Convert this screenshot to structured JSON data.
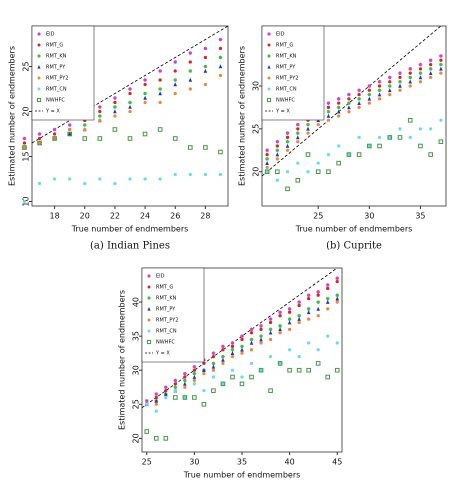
{
  "chart_data": [
    {
      "type": "scatter",
      "caption": "(a) Indian Pines",
      "x_label": "True number of endmembers",
      "y_label": "Estimated number of endmembers",
      "legend": "upper left",
      "reference_line": {
        "name": "Y = X",
        "color": "#000000"
      },
      "x": [
        16,
        17,
        18,
        19,
        20,
        21,
        22,
        23,
        24,
        25,
        26,
        27,
        28,
        29
      ],
      "xlim": [
        16.5,
        29.5
      ],
      "ylim": [
        9.5,
        29.5
      ],
      "xticks": [
        18,
        20,
        22,
        24,
        26,
        28
      ],
      "yticks": [
        10,
        15,
        20,
        25
      ],
      "series": [
        {
          "name": "EID",
          "color": "#cc44cc",
          "marker": "star",
          "values": [
            17,
            17.5,
            18,
            18.5,
            19.5,
            20.5,
            21.5,
            22.5,
            23.5,
            24.5,
            25.5,
            26.5,
            27,
            28
          ]
        },
        {
          "name": "RMT_G",
          "color": "#dd2222",
          "marker": "circle",
          "values": [
            16.5,
            17,
            17.5,
            18,
            19,
            20,
            21,
            22,
            23,
            23.5,
            24.5,
            25.5,
            26,
            27
          ]
        },
        {
          "name": "RMT_KN",
          "color": "#44bb44",
          "marker": "star",
          "values": [
            16,
            16.5,
            17,
            17.5,
            18.5,
            19.5,
            20.5,
            21,
            22,
            22.5,
            23.5,
            24.5,
            25,
            26
          ]
        },
        {
          "name": "RMT_PY",
          "color": "#2233cc",
          "marker": "triangle",
          "values": [
            16,
            16.5,
            17,
            17.5,
            18,
            19,
            20,
            20.5,
            21.5,
            22,
            23,
            23.5,
            24.5,
            25
          ]
        },
        {
          "name": "RMT_PY2",
          "color": "#ee8833",
          "marker": "circle",
          "values": [
            16,
            16.5,
            17,
            18,
            18,
            19,
            19.5,
            20,
            21,
            21,
            22,
            22.5,
            23,
            24
          ]
        },
        {
          "name": "RMT_CN",
          "color": "#66ddee",
          "marker": "circle",
          "values": [
            10,
            12,
            12.5,
            12.5,
            12,
            12.5,
            12,
            12.5,
            12.5,
            12.5,
            13,
            13,
            13,
            13
          ]
        },
        {
          "name": "NWHFC",
          "color": "#449944",
          "marker": "square",
          "values": [
            16,
            16.5,
            17,
            17.5,
            17,
            17,
            18,
            17,
            17.5,
            18,
            17,
            16,
            16,
            15.5
          ]
        }
      ]
    },
    {
      "type": "scatter",
      "caption": "(b) Cuprite",
      "x_label": "True number of endmembers",
      "y_label": "Estimated number of endmembers",
      "legend": "upper left",
      "reference_line": {
        "name": "Y = X",
        "color": "#000000"
      },
      "x": [
        20,
        21,
        22,
        23,
        24,
        25,
        26,
        27,
        28,
        29,
        30,
        31,
        32,
        33,
        34,
        35,
        36,
        37
      ],
      "xlim": [
        19.5,
        37.5
      ],
      "ylim": [
        16,
        37
      ],
      "xticks": [
        25,
        30,
        35
      ],
      "yticks": [
        20,
        25,
        30
      ],
      "series": [
        {
          "name": "EID",
          "color": "#cc44cc",
          "marker": "star",
          "values": [
            22.5,
            23.5,
            24.5,
            25.5,
            26.5,
            27.5,
            28,
            28.5,
            29,
            29.5,
            30,
            30.5,
            31,
            31.5,
            32,
            32.5,
            33,
            33.5
          ]
        },
        {
          "name": "RMT_G",
          "color": "#dd2222",
          "marker": "circle",
          "values": [
            22,
            23,
            24,
            25,
            26,
            27,
            27.5,
            28,
            28.5,
            29,
            29.5,
            30,
            30.5,
            31,
            31.5,
            32,
            32.5,
            33
          ]
        },
        {
          "name": "RMT_KN",
          "color": "#44bb44",
          "marker": "star",
          "values": [
            21.5,
            22.5,
            23.5,
            24.5,
            25.5,
            26.5,
            27,
            27.5,
            28,
            28.5,
            29,
            29.5,
            30,
            30.5,
            31,
            31.5,
            32,
            32.5
          ]
        },
        {
          "name": "RMT_PY",
          "color": "#2233cc",
          "marker": "triangle",
          "values": [
            21,
            22,
            23,
            24,
            25,
            26,
            26.5,
            27,
            27.5,
            28,
            28.5,
            29,
            29.5,
            30,
            30.5,
            31,
            31.5,
            32
          ]
        },
        {
          "name": "RMT_PY2",
          "color": "#ee8833",
          "marker": "circle",
          "values": [
            20.5,
            21.5,
            22.5,
            23.5,
            24.5,
            25.5,
            26,
            26.5,
            27,
            27.5,
            28,
            28.5,
            29,
            29.5,
            30,
            30.5,
            31,
            31.5
          ]
        },
        {
          "name": "RMT_CN",
          "color": "#66ddee",
          "marker": "circle",
          "values": [
            20,
            19,
            20,
            21,
            20,
            21,
            22,
            23,
            22,
            24,
            23,
            24,
            24,
            25,
            24,
            25,
            25,
            26
          ]
        },
        {
          "name": "NWHFC",
          "color": "#449944",
          "marker": "square",
          "values": [
            20,
            20,
            18,
            19,
            22,
            20,
            20,
            21,
            22,
            22,
            23,
            23,
            24,
            24,
            26,
            23,
            22,
            23.5
          ]
        }
      ]
    },
    {
      "type": "scatter",
      "x_label": "True number of endmembers",
      "y_label": "Estimated number of endmembers",
      "legend": "upper left",
      "reference_line": {
        "name": "Y = X",
        "color": "#000000"
      },
      "x": [
        25,
        26,
        27,
        28,
        29,
        30,
        31,
        32,
        33,
        34,
        35,
        36,
        37,
        38,
        39,
        40,
        41,
        42,
        43,
        44,
        45
      ],
      "xlim": [
        24.5,
        45.5
      ],
      "ylim": [
        18,
        45
      ],
      "xticks": [
        25,
        30,
        35,
        40,
        45
      ],
      "yticks": [
        20,
        25,
        30,
        35,
        40
      ],
      "series": [
        {
          "name": "EID",
          "color": "#cc44cc",
          "marker": "star",
          "values": [
            25.5,
            26.5,
            27.5,
            28.5,
            29.5,
            30.5,
            31.5,
            32.5,
            33.5,
            34,
            35,
            36,
            36.5,
            37.5,
            38.5,
            39,
            40,
            41,
            41.5,
            42.5,
            43.5
          ]
        },
        {
          "name": "RMT_G",
          "color": "#dd2222",
          "marker": "circle",
          "values": [
            25,
            26,
            27,
            28,
            29,
            30,
            31,
            32,
            33,
            33.5,
            34.5,
            35.5,
            36,
            37,
            38,
            38.5,
            39.5,
            40.5,
            41,
            42,
            43
          ]
        },
        {
          "name": "RMT_KN",
          "color": "#44bb44",
          "marker": "star",
          "values": [
            25,
            25.5,
            26.5,
            27.5,
            28.5,
            29.5,
            30,
            31,
            32,
            33,
            33.5,
            34.5,
            35,
            36,
            36.5,
            37.5,
            38,
            39,
            40,
            40.5,
            41
          ]
        },
        {
          "name": "RMT_PY",
          "color": "#2233cc",
          "marker": "triangle",
          "values": [
            25,
            25.5,
            26.5,
            27,
            28,
            29,
            30,
            30.5,
            31.5,
            32.5,
            33,
            34,
            34.5,
            35.5,
            36,
            37,
            37.5,
            38.5,
            39,
            40,
            40.5
          ]
        },
        {
          "name": "RMT_PY2",
          "color": "#ee8833",
          "marker": "circle",
          "values": [
            25,
            25,
            26,
            27,
            27.5,
            28.5,
            29.5,
            30,
            31,
            32,
            32.5,
            33,
            34,
            34.5,
            35.5,
            36,
            37,
            37.5,
            38,
            39,
            40
          ]
        },
        {
          "name": "RMT_CN",
          "color": "#66ddee",
          "marker": "circle",
          "values": [
            25,
            24,
            26,
            27,
            26,
            28,
            27,
            29,
            28,
            30,
            29,
            31,
            30,
            32,
            31,
            33,
            32,
            34,
            33,
            35,
            34
          ]
        },
        {
          "name": "NWHFC",
          "color": "#449944",
          "marker": "square",
          "values": [
            21,
            20,
            20,
            26,
            26,
            26,
            25,
            27,
            28,
            29,
            28,
            29,
            30,
            27,
            31,
            30,
            30,
            30,
            31,
            29,
            30
          ]
        }
      ]
    }
  ]
}
